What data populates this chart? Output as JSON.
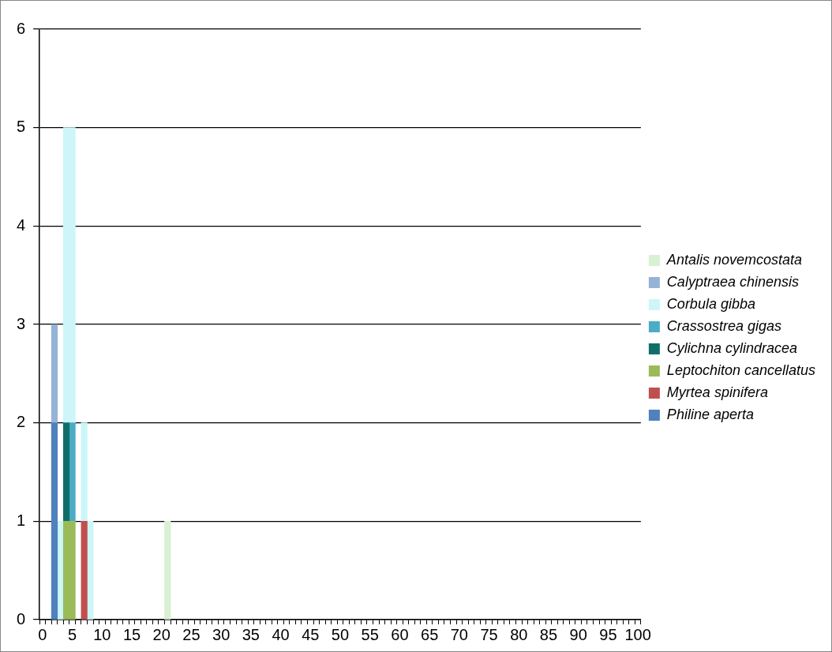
{
  "chart_data": {
    "type": "bar",
    "stacked": true,
    "legend": "right",
    "grid": "y",
    "categories": [
      "0",
      null,
      null,
      null,
      null,
      "5",
      null,
      null,
      null,
      null,
      "10",
      null,
      null,
      null,
      null,
      "15",
      null,
      null,
      null,
      null,
      "20",
      null,
      null,
      null,
      null,
      "25",
      null,
      null,
      null,
      null,
      "30",
      null,
      null,
      null,
      null,
      "35",
      null,
      null,
      null,
      null,
      "40",
      null,
      null,
      null,
      null,
      "45",
      null,
      null,
      null,
      null,
      "50",
      null,
      null,
      null,
      null,
      "55",
      null,
      null,
      null,
      null,
      "60",
      null,
      null,
      null,
      null,
      "65",
      null,
      null,
      null,
      null,
      "70",
      null,
      null,
      null,
      null,
      "75",
      null,
      null,
      null,
      null,
      "80",
      null,
      null,
      null,
      null,
      "85",
      null,
      null,
      null,
      null,
      "90",
      null,
      null,
      null,
      null,
      "95",
      null,
      null,
      null,
      null,
      "100"
    ],
    "ylim": [
      0,
      6
    ],
    "yticks": [
      0,
      1,
      2,
      3,
      4,
      5,
      6
    ],
    "series": [
      {
        "name": "Philine aperta",
        "color": "#4f81bd",
        "values": [
          null,
          null,
          2,
          null,
          null,
          null,
          null,
          null,
          null,
          null,
          null,
          null,
          null,
          null,
          null,
          null,
          null,
          null,
          null,
          null,
          null,
          null,
          null,
          null,
          null,
          null,
          null,
          null,
          null,
          null,
          null,
          null,
          null,
          null,
          null,
          null,
          null,
          null,
          null,
          null,
          null,
          null,
          null,
          null,
          null,
          null,
          null,
          null,
          null,
          null,
          null,
          null,
          null,
          null,
          null,
          null,
          null,
          null,
          null,
          null,
          null,
          null,
          null,
          null,
          null,
          null,
          null,
          null,
          null,
          null,
          null,
          null,
          null,
          null,
          null,
          null,
          null,
          null,
          null,
          null,
          null,
          null,
          null,
          null,
          null,
          null,
          null,
          null,
          null,
          null,
          null,
          null,
          null,
          null,
          null,
          null,
          null,
          null,
          null,
          null,
          null
        ]
      },
      {
        "name": "Myrtea spinifera",
        "color": "#c0504d",
        "values": [
          null,
          null,
          null,
          null,
          null,
          null,
          null,
          1,
          null,
          null,
          null,
          null,
          null,
          null,
          null,
          null,
          null,
          null,
          null,
          null,
          null,
          null,
          null,
          null,
          null,
          null,
          null,
          null,
          null,
          null,
          null,
          null,
          null,
          null,
          null,
          null,
          null,
          null,
          null,
          null,
          null,
          null,
          null,
          null,
          null,
          null,
          null,
          null,
          null,
          null,
          null,
          null,
          null,
          null,
          null,
          null,
          null,
          null,
          null,
          null,
          null,
          null,
          null,
          null,
          null,
          null,
          null,
          null,
          null,
          null,
          null,
          null,
          null,
          null,
          null,
          null,
          null,
          null,
          null,
          null,
          null,
          null,
          null,
          null,
          null,
          null,
          null,
          null,
          null,
          null,
          null,
          null,
          null,
          null,
          null,
          null,
          null,
          null,
          null,
          null,
          null
        ]
      },
      {
        "name": "Leptochiton cancellatus",
        "color": "#9bbb59",
        "values": [
          null,
          null,
          null,
          null,
          1,
          1,
          null,
          null,
          null,
          null,
          null,
          null,
          null,
          null,
          null,
          null,
          null,
          null,
          null,
          null,
          null,
          null,
          null,
          null,
          null,
          null,
          null,
          null,
          null,
          null,
          null,
          null,
          null,
          null,
          null,
          null,
          null,
          null,
          null,
          null,
          null,
          null,
          null,
          null,
          null,
          null,
          null,
          null,
          null,
          null,
          null,
          null,
          null,
          null,
          null,
          null,
          null,
          null,
          null,
          null,
          null,
          null,
          null,
          null,
          null,
          null,
          null,
          null,
          null,
          null,
          null,
          null,
          null,
          null,
          null,
          null,
          null,
          null,
          null,
          null,
          null,
          null,
          null,
          null,
          null,
          null,
          null,
          null,
          null,
          null,
          null,
          null,
          null,
          null,
          null,
          null,
          null,
          null,
          null,
          null,
          null
        ]
      },
      {
        "name": "Cylichna cylindracea",
        "color": "#106e6a",
        "values": [
          null,
          null,
          null,
          null,
          1,
          null,
          null,
          null,
          null,
          null,
          null,
          null,
          null,
          null,
          null,
          null,
          null,
          null,
          null,
          null,
          null,
          null,
          null,
          null,
          null,
          null,
          null,
          null,
          null,
          null,
          null,
          null,
          null,
          null,
          null,
          null,
          null,
          null,
          null,
          null,
          null,
          null,
          null,
          null,
          null,
          null,
          null,
          null,
          null,
          null,
          null,
          null,
          null,
          null,
          null,
          null,
          null,
          null,
          null,
          null,
          null,
          null,
          null,
          null,
          null,
          null,
          null,
          null,
          null,
          null,
          null,
          null,
          null,
          null,
          null,
          null,
          null,
          null,
          null,
          null,
          null,
          null,
          null,
          null,
          null,
          null,
          null,
          null,
          null,
          null,
          null,
          null,
          null,
          null,
          null,
          null,
          null,
          null,
          null,
          null,
          null
        ]
      },
      {
        "name": "Crassostrea gigas",
        "color": "#4bacc6",
        "values": [
          null,
          null,
          null,
          null,
          null,
          1,
          null,
          null,
          null,
          null,
          null,
          null,
          null,
          null,
          null,
          null,
          null,
          null,
          null,
          null,
          null,
          null,
          null,
          null,
          null,
          null,
          null,
          null,
          null,
          null,
          null,
          null,
          null,
          null,
          null,
          null,
          null,
          null,
          null,
          null,
          null,
          null,
          null,
          null,
          null,
          null,
          null,
          null,
          null,
          null,
          null,
          null,
          null,
          null,
          null,
          null,
          null,
          null,
          null,
          null,
          null,
          null,
          null,
          null,
          null,
          null,
          null,
          null,
          null,
          null,
          null,
          null,
          null,
          null,
          null,
          null,
          null,
          null,
          null,
          null,
          null,
          null,
          null,
          null,
          null,
          null,
          null,
          null,
          null,
          null,
          null,
          null,
          null,
          null,
          null,
          null,
          null,
          null,
          null,
          null,
          null
        ]
      },
      {
        "name": "Corbula gibba",
        "color": "#ccf6f8",
        "values": [
          null,
          null,
          null,
          1,
          3,
          3,
          null,
          1,
          1,
          null,
          null,
          null,
          null,
          null,
          null,
          null,
          null,
          null,
          null,
          null,
          null,
          null,
          null,
          null,
          null,
          null,
          null,
          null,
          null,
          null,
          null,
          null,
          null,
          null,
          null,
          null,
          null,
          null,
          null,
          null,
          null,
          null,
          null,
          null,
          null,
          null,
          null,
          null,
          null,
          null,
          null,
          null,
          null,
          null,
          null,
          null,
          null,
          null,
          null,
          null,
          null,
          null,
          null,
          null,
          null,
          null,
          null,
          null,
          null,
          null,
          null,
          null,
          null,
          null,
          null,
          null,
          null,
          null,
          null,
          null,
          null,
          null,
          null,
          null,
          null,
          null,
          null,
          null,
          null,
          null,
          null,
          null,
          null,
          null,
          null,
          null,
          null,
          null,
          null,
          null,
          null
        ]
      },
      {
        "name": "Calyptraea chinensis",
        "color": "#95b3d7",
        "values": [
          null,
          null,
          1,
          null,
          null,
          null,
          null,
          null,
          null,
          null,
          null,
          null,
          null,
          null,
          null,
          null,
          null,
          null,
          null,
          null,
          null,
          null,
          null,
          null,
          null,
          null,
          null,
          null,
          null,
          null,
          null,
          null,
          null,
          null,
          null,
          null,
          null,
          null,
          null,
          null,
          null,
          null,
          null,
          null,
          null,
          null,
          null,
          null,
          null,
          null,
          null,
          null,
          null,
          null,
          null,
          null,
          null,
          null,
          null,
          null,
          null,
          null,
          null,
          null,
          null,
          null,
          null,
          null,
          null,
          null,
          null,
          null,
          null,
          null,
          null,
          null,
          null,
          null,
          null,
          null,
          null,
          null,
          null,
          null,
          null,
          null,
          null,
          null,
          null,
          null,
          null,
          null,
          null,
          null,
          null,
          null,
          null,
          null,
          null,
          null,
          null
        ]
      },
      {
        "name": "Antalis novemcostata",
        "color": "#d8f1d2",
        "values": [
          null,
          null,
          null,
          null,
          null,
          null,
          null,
          null,
          null,
          null,
          null,
          null,
          null,
          null,
          null,
          null,
          null,
          null,
          null,
          null,
          null,
          1,
          null,
          null,
          null,
          null,
          null,
          null,
          null,
          null,
          null,
          null,
          null,
          null,
          null,
          null,
          null,
          null,
          null,
          null,
          null,
          null,
          null,
          null,
          null,
          null,
          null,
          null,
          null,
          null,
          null,
          null,
          null,
          null,
          null,
          null,
          null,
          null,
          null,
          null,
          null,
          null,
          null,
          null,
          null,
          null,
          null,
          null,
          null,
          null,
          null,
          null,
          null,
          null,
          null,
          null,
          null,
          null,
          null,
          null,
          null,
          null,
          null,
          null,
          null,
          null,
          null,
          null,
          null,
          null,
          null,
          null,
          null,
          null,
          null,
          null,
          null,
          null,
          null,
          null,
          null
        ]
      }
    ]
  }
}
